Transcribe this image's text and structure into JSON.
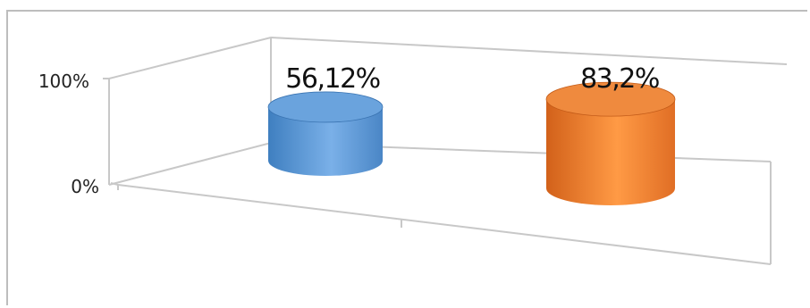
{
  "chart_data": {
    "type": "bar",
    "style": "3d-cylinder",
    "categories": [
      ""
    ],
    "series": [
      {
        "values": [
          56.12
        ],
        "label": "56,12%",
        "color": "#5b9bd5"
      },
      {
        "values": [
          83.2
        ],
        "label": "83,2%",
        "color": "#ed7d31"
      }
    ],
    "y_ticks": [
      "0%",
      "100%"
    ],
    "ylim": [
      0,
      100
    ],
    "grid": false,
    "legend": "none"
  }
}
